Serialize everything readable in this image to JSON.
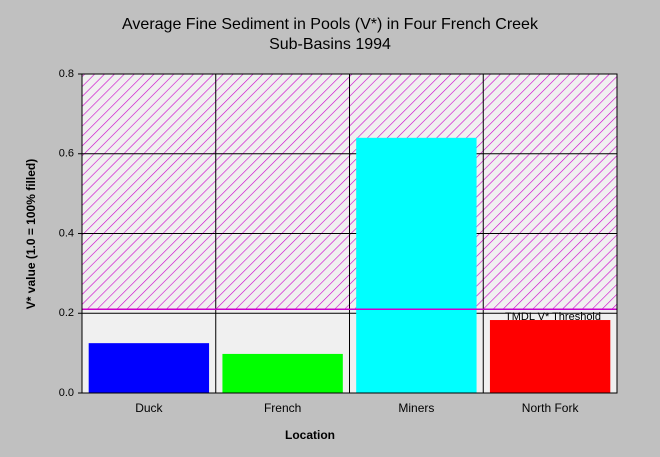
{
  "chart_data": {
    "type": "bar",
    "title": "Average Fine Sediment in Pools (V*) in Four French Creek",
    "subtitle": "Sub-Basins 1994",
    "x_label": "Location",
    "y_label": "V* value (1.0 = 100% filled)",
    "categories": [
      "Duck",
      "French",
      "Miners",
      "North Fork"
    ],
    "values": [
      0.125,
      0.098,
      0.64,
      0.183
    ],
    "colors": [
      "#0000ff",
      "#00ff00",
      "#00ffff",
      "#ff0000"
    ],
    "ylim": [
      0,
      0.8
    ],
    "yticks": [
      {
        "value": 0,
        "label": "0.0"
      },
      {
        "value": 0.2,
        "label": "0.2"
      },
      {
        "value": 0.4,
        "label": "0.4"
      },
      {
        "value": 0.6,
        "label": "0.6"
      },
      {
        "value": 0.8,
        "label": "0.8"
      }
    ],
    "grid": true,
    "threshold": {
      "value": 0.21,
      "label": "TMDL V* Threshold",
      "color": "#cc00cc"
    }
  }
}
